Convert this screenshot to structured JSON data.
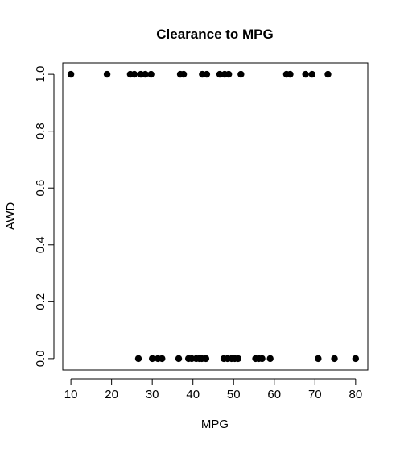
{
  "chart_data": {
    "type": "scatter",
    "title": "Clearance to MPG",
    "xlabel": "MPG",
    "ylabel": "AWD",
    "xlim": [
      8,
      83
    ],
    "ylim": [
      -0.04,
      1.04
    ],
    "xticks": [
      "10",
      "20",
      "30",
      "40",
      "50",
      "60",
      "70",
      "80"
    ],
    "yticks": [
      "0.0",
      "0.2",
      "0.4",
      "0.6",
      "0.8",
      "1.0"
    ],
    "xtick_values": [
      10,
      20,
      30,
      40,
      50,
      60,
      70,
      80
    ],
    "ytick_values": [
      0,
      0.2,
      0.4,
      0.6,
      0.8,
      1.0
    ],
    "grid": false,
    "point_color": "#000000",
    "points": [
      {
        "x": 10.0,
        "y": 1
      },
      {
        "x": 18.9,
        "y": 1
      },
      {
        "x": 24.6,
        "y": 1
      },
      {
        "x": 25.6,
        "y": 1
      },
      {
        "x": 27.2,
        "y": 1
      },
      {
        "x": 28.3,
        "y": 1
      },
      {
        "x": 29.7,
        "y": 1
      },
      {
        "x": 36.9,
        "y": 1
      },
      {
        "x": 37.7,
        "y": 1
      },
      {
        "x": 42.3,
        "y": 1
      },
      {
        "x": 43.4,
        "y": 1
      },
      {
        "x": 46.6,
        "y": 1
      },
      {
        "x": 47.8,
        "y": 1
      },
      {
        "x": 48.8,
        "y": 1
      },
      {
        "x": 51.8,
        "y": 1
      },
      {
        "x": 63.0,
        "y": 1
      },
      {
        "x": 63.9,
        "y": 1
      },
      {
        "x": 67.7,
        "y": 1
      },
      {
        "x": 69.3,
        "y": 1
      },
      {
        "x": 73.2,
        "y": 1
      },
      {
        "x": 26.6,
        "y": 0
      },
      {
        "x": 30.0,
        "y": 0
      },
      {
        "x": 31.4,
        "y": 0
      },
      {
        "x": 32.4,
        "y": 0
      },
      {
        "x": 36.5,
        "y": 0
      },
      {
        "x": 38.9,
        "y": 0
      },
      {
        "x": 39.7,
        "y": 0
      },
      {
        "x": 40.8,
        "y": 0
      },
      {
        "x": 41.6,
        "y": 0
      },
      {
        "x": 42.2,
        "y": 0
      },
      {
        "x": 43.2,
        "y": 0
      },
      {
        "x": 47.6,
        "y": 0
      },
      {
        "x": 48.5,
        "y": 0
      },
      {
        "x": 49.5,
        "y": 0
      },
      {
        "x": 50.3,
        "y": 0
      },
      {
        "x": 51.1,
        "y": 0
      },
      {
        "x": 55.4,
        "y": 0
      },
      {
        "x": 56.2,
        "y": 0
      },
      {
        "x": 57.0,
        "y": 0
      },
      {
        "x": 59.0,
        "y": 0
      },
      {
        "x": 70.8,
        "y": 0
      },
      {
        "x": 74.8,
        "y": 0
      },
      {
        "x": 80.0,
        "y": 0
      }
    ]
  }
}
